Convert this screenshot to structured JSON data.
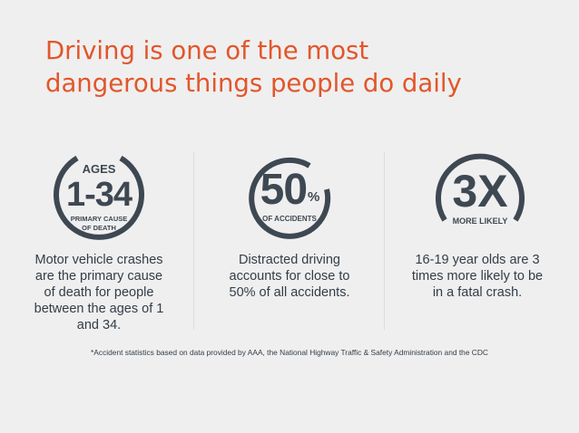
{
  "title": {
    "line1": "Driving is one of the most",
    "line2": "dangerous things people do daily"
  },
  "stats": [
    {
      "top_text": "AGES",
      "big_text": "1-34",
      "sub_line1": "PRIMARY CAUSE",
      "sub_line2": "OF DEATH",
      "description_lines": [
        "Motor vehicle crashes",
        "are the primary cause",
        "of death for people",
        "between the ages of 1",
        "and 34."
      ]
    },
    {
      "big_text": "50",
      "superscript": "%",
      "sub_line1": "OF ACCIDENTS",
      "description_lines": [
        "Distracted driving",
        "accounts for close to",
        "50% of all accidents."
      ]
    },
    {
      "big_text": "3X",
      "sub_line1": "MORE LIKELY",
      "description_lines": [
        "16-19 year olds are 3",
        "times more likely to be",
        "in a fatal crash."
      ]
    }
  ],
  "footnote": "*Accident statistics based on data provided by AAA, the National Highway Traffic & Safety Administration and the CDC",
  "colors": {
    "accent": "#e2562b",
    "ring": "#3e4852",
    "text": "#333d47",
    "background": "#efefef"
  }
}
